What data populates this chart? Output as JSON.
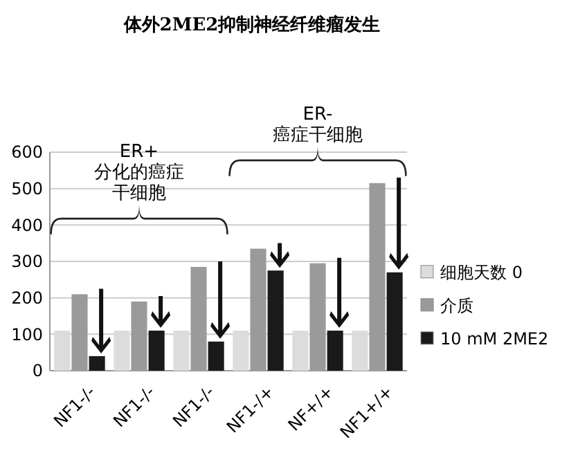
{
  "chart_data": {
    "type": "bar",
    "title": "体外2ME2抑制神经纤维瘤发生",
    "categories": [
      "NF1-/-",
      "NF1-/-",
      "NF1-/-",
      "NF1-/+",
      "NF+/+",
      "NF1+/+"
    ],
    "series": [
      {
        "name": "细胞天数 0",
        "color": "#dcdcdc",
        "values": [
          110,
          110,
          110,
          110,
          110,
          110
        ]
      },
      {
        "name": "介质",
        "color": "#9a9a9a",
        "values": [
          210,
          190,
          285,
          335,
          295,
          515
        ]
      },
      {
        "name": "10 mM 2ME2",
        "color": "#1a1a1a",
        "values": [
          40,
          110,
          80,
          275,
          110,
          270
        ]
      }
    ],
    "ylim": [
      0,
      600
    ],
    "yticks": [
      0,
      100,
      200,
      300,
      400,
      500,
      600
    ],
    "grid": "y",
    "legend": "right",
    "annotations": [
      "ER+",
      "分化的癌症",
      "干细胞",
      "ER-",
      "癌症干细胞"
    ]
  }
}
